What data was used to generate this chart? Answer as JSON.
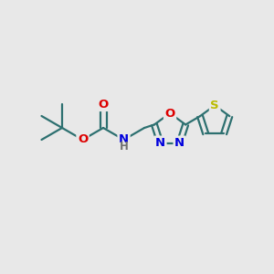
{
  "background_color": "#e8e8e8",
  "bond_color": "#2d7070",
  "bond_width": 1.6,
  "atom_colors": {
    "O": "#dd0000",
    "N": "#0000dd",
    "S": "#bbbb00",
    "C": "#2d7070",
    "H": "#707070"
  },
  "font_size_atom": 9.5,
  "fig_size": [
    3.0,
    3.0
  ],
  "dpi": 100
}
